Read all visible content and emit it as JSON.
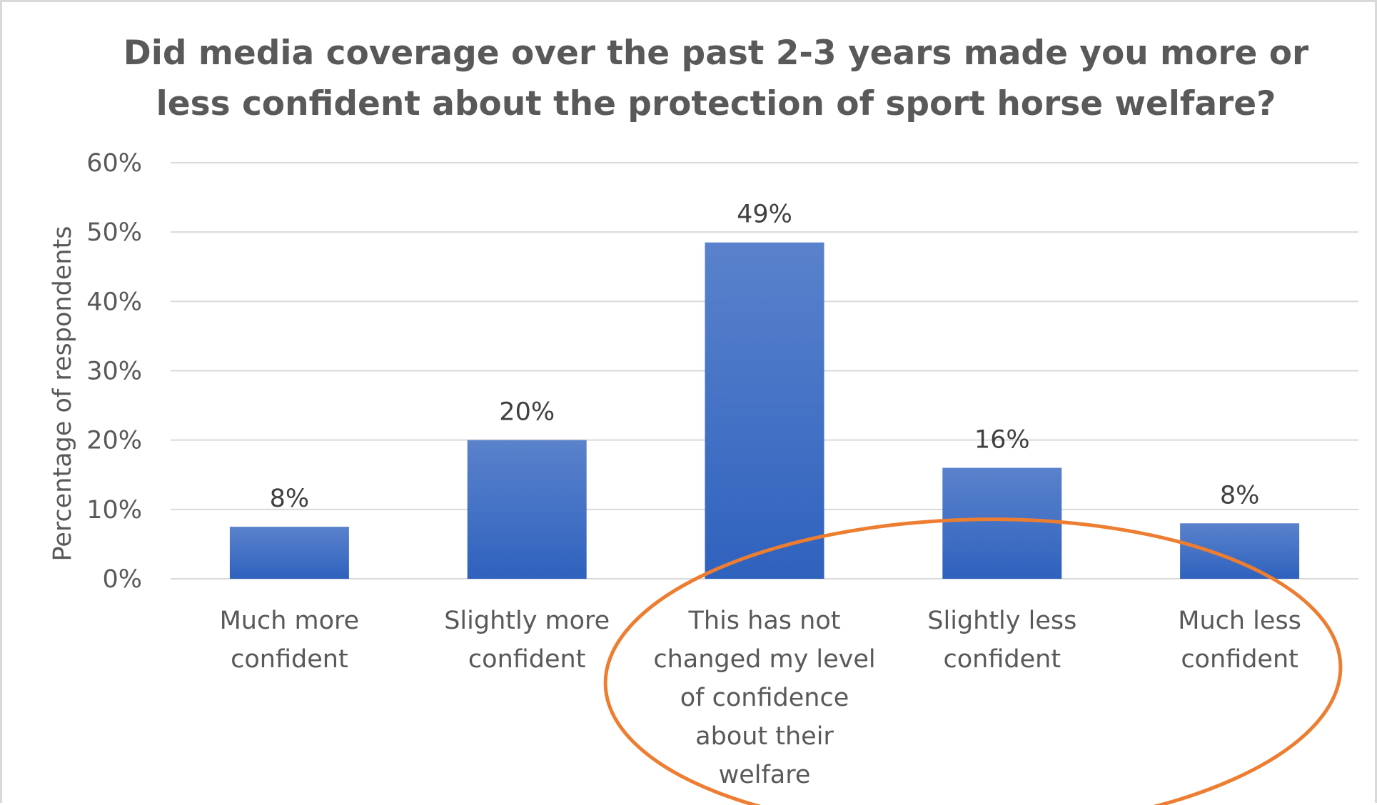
{
  "chart_data": {
    "type": "bar",
    "title": "Did media coverage over the past 2-3 years made you more or less confident about the protection of sport horse welfare?",
    "title_lines": [
      "Did media coverage over the past 2-3 years made you more or",
      "less confident about the protection of sport horse welfare?"
    ],
    "xlabel": "",
    "ylabel": "Percentage of respondents",
    "ylim": [
      0,
      60
    ],
    "y_ticks": [
      0,
      10,
      20,
      30,
      40,
      50,
      60
    ],
    "y_tick_labels": [
      "0%",
      "10%",
      "20%",
      "30%",
      "40%",
      "50%",
      "60%"
    ],
    "categories": [
      "Much more confident",
      "Slightly more confident",
      "This has not changed my level of confidence about their welfare",
      "Slightly less confident",
      "Much less confident"
    ],
    "category_label_lines": [
      [
        "Much more",
        "confident"
      ],
      [
        "Slightly more",
        "confident"
      ],
      [
        "This has not",
        "changed my level",
        "of confidence",
        "about their",
        "welfare"
      ],
      [
        "Slightly less",
        "confident"
      ],
      [
        "Much less",
        "confident"
      ]
    ],
    "values": [
      7.5,
      20,
      48.5,
      16,
      8
    ],
    "data_labels": [
      "8%",
      "20%",
      "49%",
      "16%",
      "8%"
    ],
    "grid": true,
    "legend": "none",
    "colors": {
      "bar_top": "#5a82cc",
      "bar_bottom": "#2f62be",
      "grid": "#d9d9d9",
      "annotation_ellipse": "#ed7d31"
    },
    "annotations": [
      {
        "type": "ellipse",
        "description_hidden": true,
        "encloses_categories": [
          2,
          3,
          4
        ]
      }
    ]
  }
}
